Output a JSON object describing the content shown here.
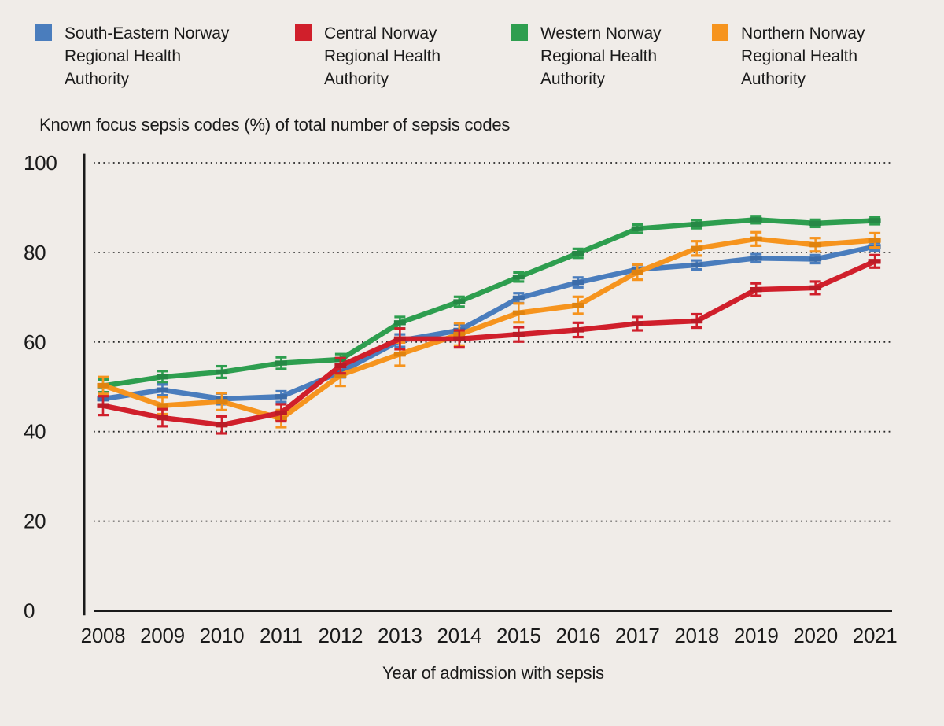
{
  "background_color": "#f0ece8",
  "text_color": "#1a1a1a",
  "legend": {
    "position": "top",
    "items": [
      {
        "label": "South-Eastern Norway Regional Health Authority",
        "color": "#4a7dbd"
      },
      {
        "label": "Central Norway Regional Health Authority",
        "color": "#d01f2b"
      },
      {
        "label": "Western Norway Regional Health Authority",
        "color": "#2e9e4f"
      },
      {
        "label": "Northern Norway Regional Health Authority",
        "color": "#f6941e"
      }
    ]
  },
  "chart_data": {
    "type": "line",
    "title": "Known focus sepsis codes (%) of total number of sepsis codes",
    "xlabel": "Year of admission with sepsis",
    "ylabel": "",
    "x": [
      2008,
      2009,
      2010,
      2011,
      2012,
      2013,
      2014,
      2015,
      2016,
      2017,
      2018,
      2019,
      2020,
      2021
    ],
    "ylim": [
      0,
      100
    ],
    "yticks": [
      0,
      20,
      40,
      60,
      80,
      100
    ],
    "grid": "horizontal-dotted",
    "error_bars": true,
    "point_marker": "horizontal-dash",
    "legend_position": "top",
    "draw_order": [
      2,
      0,
      3,
      1
    ],
    "series": [
      {
        "name": "South-Eastern Norway Regional Health Authority",
        "color": "#4a7dbd",
        "marker_color": "#3c6ca9",
        "values": [
          47.3,
          49.3,
          47.3,
          47.8,
          53.3,
          60.3,
          62.6,
          69.8,
          73.3,
          76.2,
          77.2,
          78.7,
          78.5,
          81.3
        ],
        "errors": [
          1.3,
          1.2,
          1.2,
          1.2,
          1.2,
          1.4,
          1.2,
          1.1,
          1.1,
          1.0,
          1.0,
          0.9,
          0.9,
          0.9
        ]
      },
      {
        "name": "Central Norway Regional Health Authority",
        "color": "#d01f2b",
        "marker_color": "#bb1b26",
        "values": [
          45.8,
          43.1,
          41.5,
          44.2,
          54.7,
          60.7,
          60.7,
          61.7,
          62.7,
          64.1,
          64.7,
          71.7,
          72.1,
          78.0
        ],
        "errors": [
          2.1,
          1.9,
          1.9,
          1.9,
          1.7,
          2.3,
          1.9,
          1.6,
          1.6,
          1.5,
          1.5,
          1.4,
          1.4,
          1.4
        ]
      },
      {
        "name": "Western Norway Regional Health Authority",
        "color": "#2e9e4f",
        "marker_color": "#268845",
        "values": [
          50.2,
          52.2,
          53.3,
          55.3,
          56.1,
          64.3,
          69.0,
          74.5,
          79.8,
          85.3,
          86.3,
          87.3,
          86.5,
          87.1
        ],
        "errors": [
          1.4,
          1.3,
          1.3,
          1.3,
          1.2,
          1.3,
          1.1,
          1.0,
          1.0,
          0.9,
          0.9,
          0.8,
          0.8,
          0.8
        ]
      },
      {
        "name": "Northern Norway Regional Health Authority",
        "color": "#f6941e",
        "marker_color": "#e0830f",
        "values": [
          50.3,
          45.8,
          46.7,
          42.9,
          52.6,
          57.3,
          61.7,
          66.5,
          68.2,
          75.6,
          80.9,
          83.0,
          81.7,
          82.7
        ],
        "errors": [
          1.9,
          1.9,
          1.9,
          1.9,
          2.4,
          2.6,
          2.5,
          2.1,
          1.9,
          1.7,
          1.6,
          1.5,
          1.5,
          1.6
        ]
      }
    ]
  }
}
